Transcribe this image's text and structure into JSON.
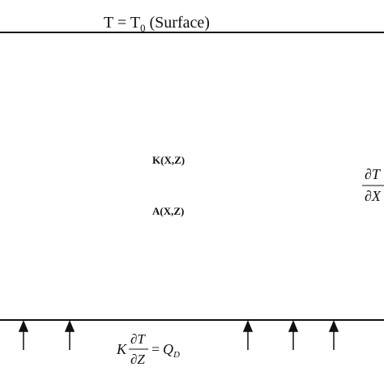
{
  "top_boundary": {
    "label_main": "T = T",
    "label_sub": "0",
    "label_suffix": " (Surface)"
  },
  "interior": {
    "conductivity_label": "K(X,Z)",
    "heat_production_label": "A(X,Z)"
  },
  "side_boundary": {
    "numerator": "∂T",
    "denominator": "∂X"
  },
  "bottom_boundary": {
    "coefficient": "K",
    "numerator": "∂T",
    "denominator": "∂Z",
    "equals": "=",
    "rhs": "Q",
    "rhs_sub": "D"
  },
  "colors": {
    "line": "#111111",
    "text": "#111111"
  }
}
